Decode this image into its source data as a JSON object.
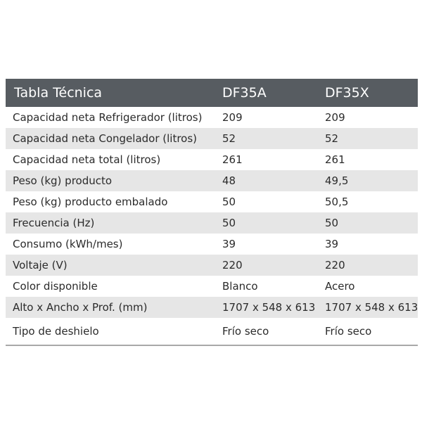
{
  "table": {
    "headers": {
      "label": "Tabla Técnica",
      "model_a": "DF35A",
      "model_x": "DF35X"
    },
    "rows": [
      {
        "label": "Capacidad neta Refrigerador (litros)",
        "a": "209",
        "x": "209"
      },
      {
        "label": "Capacidad neta Congelador (litros)",
        "a": "52",
        "x": "52"
      },
      {
        "label": "Capacidad neta total (litros)",
        "a": "261",
        "x": "261"
      },
      {
        "label": "Peso (kg) producto",
        "a": "48",
        "x": "49,5"
      },
      {
        "label": "Peso (kg) producto embalado",
        "a": "50",
        "x": "50,5"
      },
      {
        "label": "Frecuencia (Hz)",
        "a": "50",
        "x": "50"
      },
      {
        "label": "Consumo (kWh/mes)",
        "a": "39",
        "x": "39"
      },
      {
        "label": "Voltaje (V)",
        "a": "220",
        "x": "220"
      },
      {
        "label": "Color disponible",
        "a": "Blanco",
        "x": "Acero"
      },
      {
        "label": "Alto x Ancho x Prof. (mm)",
        "a": "1707 x 548 x 613",
        "x": "1707 x 548 x 613"
      },
      {
        "label": "Tipo de deshielo",
        "a": "Frío seco",
        "x": "Frío seco"
      }
    ]
  },
  "colors": {
    "header_bg": "#575c61",
    "header_text": "#ffffff",
    "stripe": "#e6e6e6",
    "text": "#2b2b2b"
  }
}
